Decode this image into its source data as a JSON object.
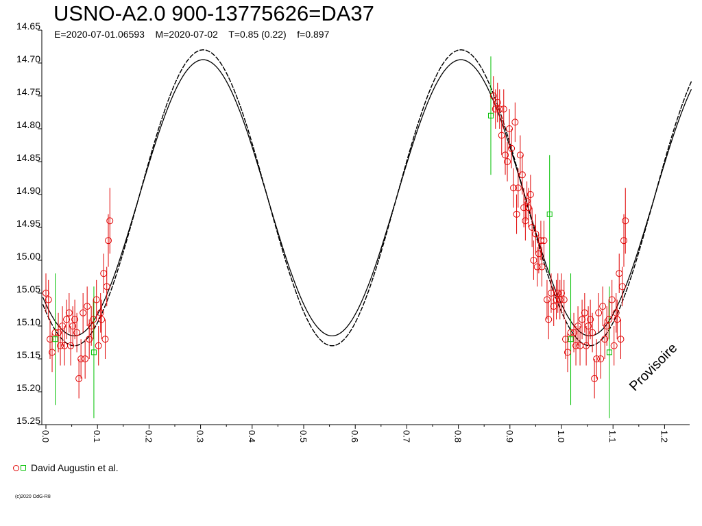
{
  "chart_data": {
    "type": "scatter",
    "title": "USNO-A2.0 900-13775626=DA37",
    "subtitle": "E=2020-07-01.06593    M=2020-07-02    T=0.85 (0.22)    f=0.897",
    "xlabel": "",
    "ylabel": "",
    "xlim": [
      -0.01,
      1.25
    ],
    "ylim": [
      14.65,
      15.25
    ],
    "y_inverted": true,
    "x_ticks": [
      "0.0",
      "0.1",
      "0.2",
      "0.3",
      "0.4",
      "0.5",
      "0.6",
      "0.7",
      "0.8",
      "0.9",
      "1.0",
      "1.1",
      "1.2"
    ],
    "y_ticks": [
      "14.65",
      "14.70",
      "14.75",
      "14.80",
      "14.85",
      "14.90",
      "14.95",
      "15.00",
      "15.05",
      "15.10",
      "15.15",
      "15.20",
      "15.25"
    ],
    "grid": false,
    "legend_position": "bottom-left",
    "model": {
      "description_values": {
        "mean": 14.905,
        "amplitude": 0.21,
        "period_phase": 0.5,
        "min_phase": 0.055
      },
      "band_halfwidth": 0.015,
      "color": "#000000"
    },
    "series": [
      {
        "name": "David Augustin et al.",
        "marker": "circle",
        "color": "#e00000",
        "points": [
          [
            0.0,
            15.05,
            0.03
          ],
          [
            0.005,
            15.06,
            0.03
          ],
          [
            0.008,
            15.12,
            0.03
          ],
          [
            0.012,
            15.14,
            0.03
          ],
          [
            0.018,
            15.11,
            0.03
          ],
          [
            0.024,
            15.11,
            0.03
          ],
          [
            0.028,
            15.13,
            0.03
          ],
          [
            0.032,
            15.1,
            0.03
          ],
          [
            0.036,
            15.13,
            0.03
          ],
          [
            0.04,
            15.09,
            0.03
          ],
          [
            0.045,
            15.08,
            0.03
          ],
          [
            0.048,
            15.13,
            0.03
          ],
          [
            0.052,
            15.1,
            0.03
          ],
          [
            0.056,
            15.09,
            0.03
          ],
          [
            0.06,
            15.11,
            0.03
          ],
          [
            0.064,
            15.18,
            0.03
          ],
          [
            0.068,
            15.15,
            0.03
          ],
          [
            0.072,
            15.08,
            0.03
          ],
          [
            0.076,
            15.15,
            0.03
          ],
          [
            0.08,
            15.07,
            0.03
          ],
          [
            0.084,
            15.12,
            0.03
          ],
          [
            0.088,
            15.1,
            0.03
          ],
          [
            0.092,
            15.09,
            0.03
          ],
          [
            0.098,
            15.06,
            0.03
          ],
          [
            0.102,
            15.13,
            0.03
          ],
          [
            0.106,
            15.08,
            0.03
          ],
          [
            0.108,
            15.09,
            0.03
          ],
          [
            0.112,
            15.02,
            0.03
          ],
          [
            0.115,
            15.12,
            0.03
          ],
          [
            0.118,
            15.04,
            0.03
          ],
          [
            0.121,
            14.97,
            0.04
          ],
          [
            0.124,
            14.94,
            0.05
          ],
          [
            0.868,
            14.75,
            0.03
          ],
          [
            0.872,
            14.77,
            0.03
          ],
          [
            0.876,
            14.76,
            0.03
          ],
          [
            0.88,
            14.77,
            0.03
          ],
          [
            0.884,
            14.81,
            0.03
          ],
          [
            0.888,
            14.77,
            0.03
          ],
          [
            0.891,
            14.84,
            0.03
          ],
          [
            0.895,
            14.85,
            0.03
          ],
          [
            0.899,
            14.8,
            0.03
          ],
          [
            0.903,
            14.83,
            0.03
          ],
          [
            0.907,
            14.89,
            0.03
          ],
          [
            0.91,
            14.79,
            0.03
          ],
          [
            0.913,
            14.93,
            0.03
          ],
          [
            0.916,
            14.89,
            0.03
          ],
          [
            0.92,
            14.84,
            0.03
          ],
          [
            0.924,
            14.87,
            0.03
          ],
          [
            0.927,
            14.92,
            0.03
          ],
          [
            0.93,
            14.94,
            0.03
          ],
          [
            0.933,
            14.91,
            0.03
          ],
          [
            0.936,
            14.92,
            0.03
          ],
          [
            0.94,
            14.9,
            0.03
          ],
          [
            0.943,
            14.95,
            0.03
          ],
          [
            0.946,
            15.0,
            0.03
          ],
          [
            0.95,
            14.96,
            0.03
          ],
          [
            0.953,
            15.01,
            0.03
          ],
          [
            0.956,
            14.99,
            0.03
          ],
          [
            0.96,
            14.97,
            0.03
          ],
          [
            0.962,
            15.01,
            0.03
          ],
          [
            0.966,
            14.97,
            0.03
          ],
          [
            0.972,
            15.06,
            0.03
          ],
          [
            0.975,
            15.09,
            0.03
          ],
          [
            0.98,
            15.05,
            0.03
          ],
          [
            0.985,
            15.07,
            0.03
          ],
          [
            0.99,
            15.06,
            0.03
          ],
          [
            0.993,
            15.05,
            0.03
          ],
          [
            0.997,
            15.06,
            0.03
          ],
          [
            1.0,
            15.05,
            0.03
          ],
          [
            1.005,
            15.06,
            0.03
          ],
          [
            1.008,
            15.12,
            0.03
          ],
          [
            1.012,
            15.14,
            0.03
          ],
          [
            1.018,
            15.11,
            0.03
          ],
          [
            1.024,
            15.11,
            0.03
          ],
          [
            1.028,
            15.13,
            0.03
          ],
          [
            1.032,
            15.1,
            0.03
          ],
          [
            1.036,
            15.13,
            0.03
          ],
          [
            1.04,
            15.09,
            0.03
          ],
          [
            1.045,
            15.08,
            0.03
          ],
          [
            1.048,
            15.13,
            0.03
          ],
          [
            1.052,
            15.1,
            0.03
          ],
          [
            1.056,
            15.09,
            0.03
          ],
          [
            1.06,
            15.11,
            0.03
          ],
          [
            1.064,
            15.18,
            0.03
          ],
          [
            1.068,
            15.15,
            0.03
          ],
          [
            1.072,
            15.08,
            0.03
          ],
          [
            1.076,
            15.15,
            0.03
          ],
          [
            1.08,
            15.07,
            0.03
          ],
          [
            1.084,
            15.12,
            0.03
          ],
          [
            1.088,
            15.1,
            0.03
          ],
          [
            1.092,
            15.09,
            0.03
          ],
          [
            1.098,
            15.06,
            0.03
          ],
          [
            1.102,
            15.13,
            0.03
          ],
          [
            1.106,
            15.08,
            0.03
          ],
          [
            1.108,
            15.09,
            0.03
          ],
          [
            1.112,
            15.02,
            0.03
          ],
          [
            1.115,
            15.12,
            0.03
          ],
          [
            1.118,
            15.04,
            0.03
          ],
          [
            1.121,
            14.97,
            0.04
          ],
          [
            1.124,
            14.94,
            0.05
          ]
        ]
      },
      {
        "name": "David Augustin et al.",
        "marker": "square",
        "color": "#00c000",
        "points": [
          [
            0.018,
            15.12,
            0.1
          ],
          [
            0.093,
            15.14,
            0.1
          ],
          [
            0.863,
            14.78,
            0.09
          ],
          [
            0.977,
            14.93,
            0.09
          ],
          [
            1.018,
            15.12,
            0.1
          ],
          [
            1.093,
            15.14,
            0.1
          ]
        ]
      }
    ]
  },
  "legend": {
    "label": "David Augustin et al."
  },
  "watermark": "Provisoire",
  "copyright": "(c)2020 OdG-R8"
}
